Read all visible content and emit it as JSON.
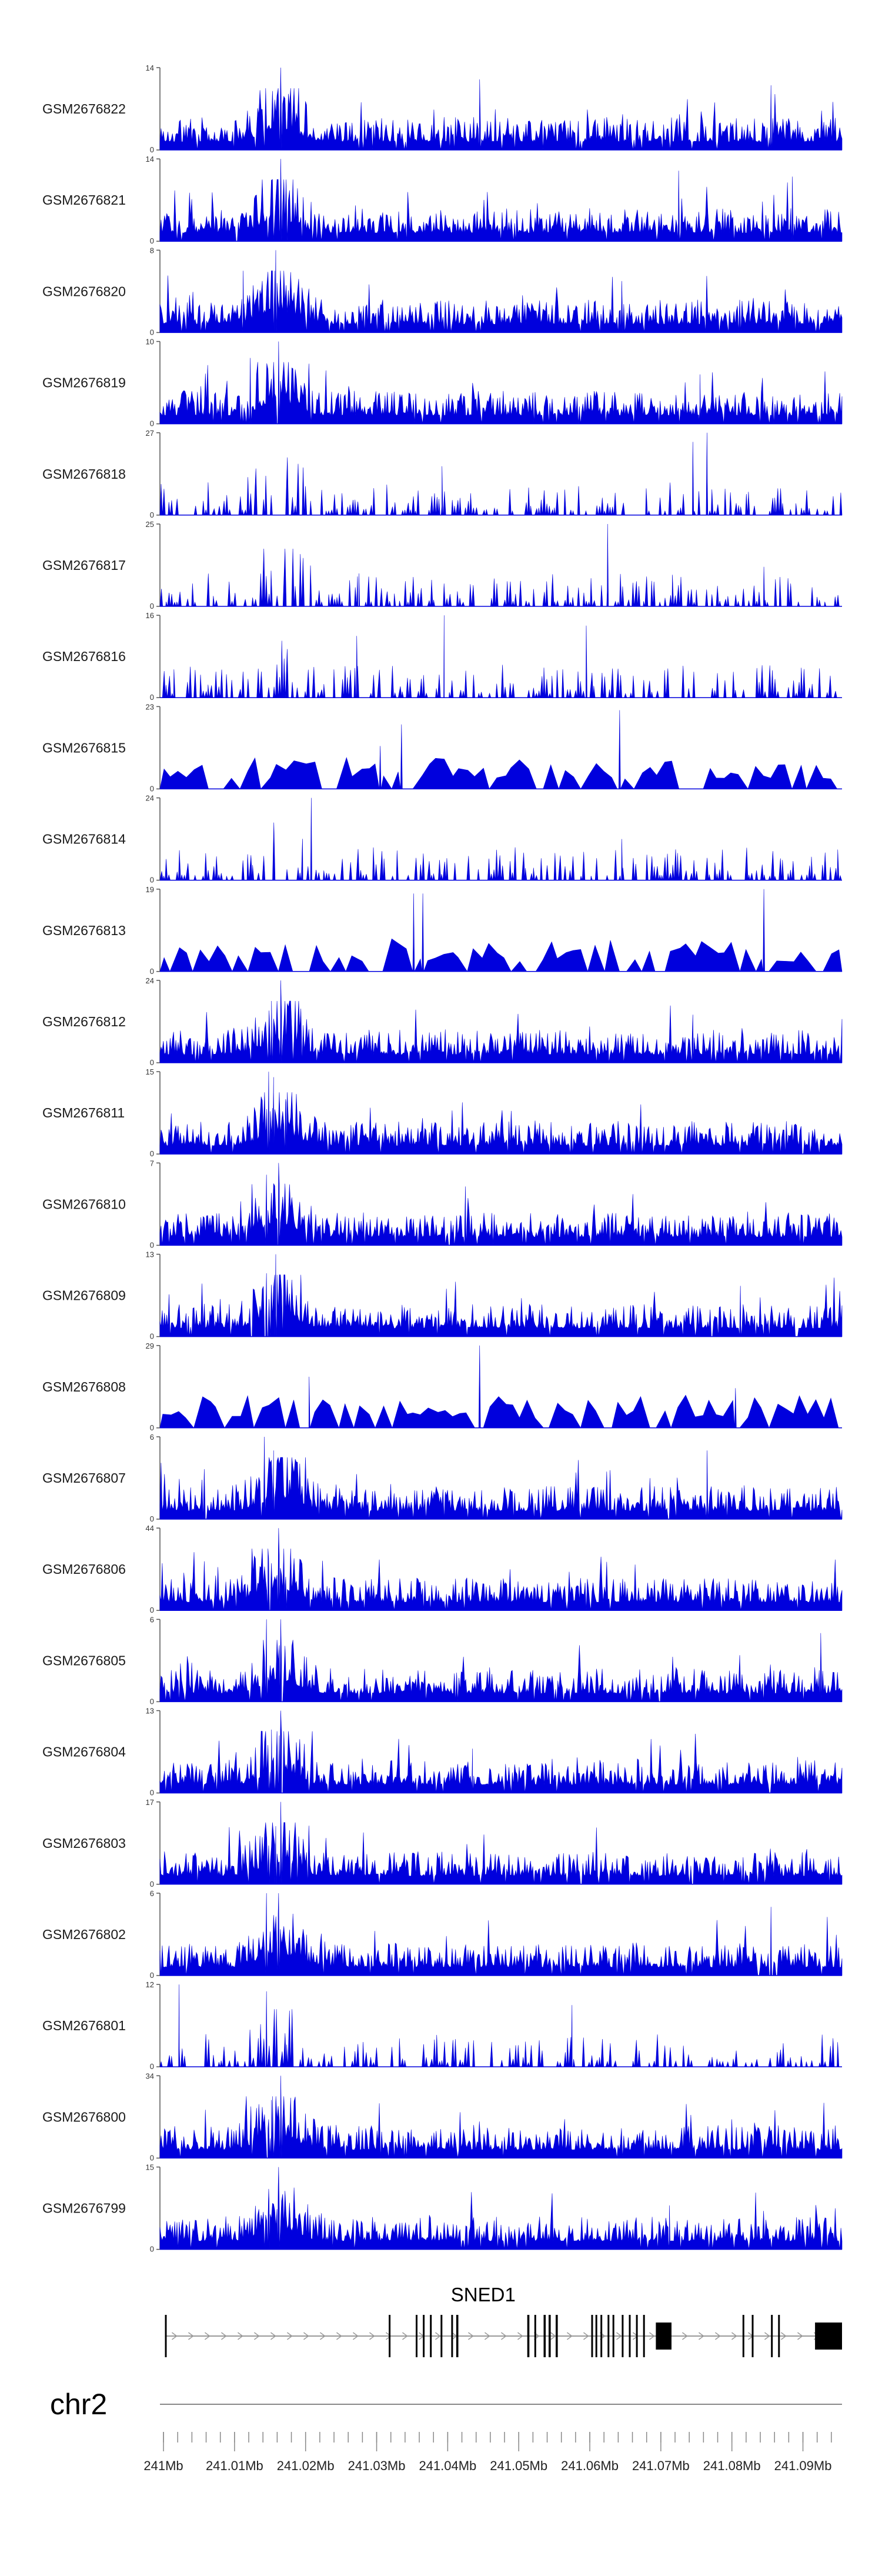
{
  "chart_data": {
    "type": "area",
    "title": "",
    "chromosome": "chr2",
    "x_unit": "Mb",
    "xlim": [
      240.9995,
      241.0955
    ],
    "x_ticks": [
      241.0,
      241.01,
      241.02,
      241.03,
      241.04,
      241.05,
      241.06,
      241.07,
      241.08,
      241.09
    ],
    "x_tick_labels": [
      "241Mb",
      "241.01Mb",
      "241.02Mb",
      "241.03Mb",
      "241.04Mb",
      "241.05Mb",
      "241.06Mb",
      "241.07Mb",
      "241.08Mb",
      "241.09Mb"
    ],
    "series": [
      {
        "name": "GSM2676822",
        "ymax": 14,
        "y_tick_labels": [
          "14",
          "0"
        ],
        "style": "dense",
        "peaks": [
          [
            241.0165,
            14
          ],
          [
            241.0445,
            12
          ],
          [
            241.0855,
            11
          ]
        ]
      },
      {
        "name": "GSM2676821",
        "ymax": 14,
        "y_tick_labels": [
          "14",
          "0"
        ],
        "style": "dense",
        "peaks": [
          [
            241.0165,
            14
          ],
          [
            241.0725,
            12
          ],
          [
            241.0885,
            11
          ]
        ]
      },
      {
        "name": "GSM2676820",
        "ymax": 8,
        "y_tick_labels": [
          "8",
          "0"
        ],
        "style": "dense",
        "peaks": [
          [
            241.0158,
            8
          ],
          [
            241.0112,
            6
          ],
          [
            241.0645,
            5
          ]
        ]
      },
      {
        "name": "GSM2676819",
        "ymax": 10,
        "y_tick_labels": [
          "10",
          "0"
        ],
        "style": "dense",
        "peaks": [
          [
            241.0162,
            10
          ],
          [
            241.0122,
            8
          ],
          [
            241.0755,
            6
          ]
        ]
      },
      {
        "name": "GSM2676818",
        "ymax": 27,
        "y_tick_labels": [
          "27",
          "0"
        ],
        "style": "sparse",
        "peaks": [
          [
            241.0765,
            27
          ],
          [
            241.0745,
            24
          ],
          [
            241.0392,
            16
          ]
        ]
      },
      {
        "name": "GSM2676817",
        "ymax": 25,
        "y_tick_labels": [
          "25",
          "0"
        ],
        "style": "sparse",
        "peaks": [
          [
            241.0625,
            25
          ],
          [
            241.0845,
            12
          ],
          [
            241.0275,
            10
          ]
        ]
      },
      {
        "name": "GSM2676816",
        "ymax": 16,
        "y_tick_labels": [
          "16",
          "0"
        ],
        "style": "sparse",
        "peaks": [
          [
            241.0395,
            16
          ],
          [
            241.0595,
            14
          ],
          [
            241.0272,
            12
          ]
        ]
      },
      {
        "name": "GSM2676815",
        "ymax": 23,
        "y_tick_labels": [
          "23",
          "0"
        ],
        "style": "spiky",
        "peaks": [
          [
            241.0642,
            22
          ],
          [
            241.0335,
            18
          ],
          [
            241.0305,
            12
          ]
        ]
      },
      {
        "name": "GSM2676814",
        "ymax": 24,
        "y_tick_labels": [
          "24",
          "0"
        ],
        "style": "sparse",
        "peaks": [
          [
            241.0208,
            24
          ],
          [
            241.0645,
            12
          ],
          [
            241.0195,
            8
          ]
        ]
      },
      {
        "name": "GSM2676813",
        "ymax": 19,
        "y_tick_labels": [
          "19",
          "0"
        ],
        "style": "spiky",
        "peaks": [
          [
            241.0845,
            19
          ],
          [
            241.0352,
            18
          ],
          [
            241.0365,
            18
          ]
        ]
      },
      {
        "name": "GSM2676812",
        "ymax": 24,
        "y_tick_labels": [
          "24",
          "0"
        ],
        "style": "dense",
        "peaks": [
          [
            241.0165,
            24
          ],
          [
            241.0152,
            18
          ],
          [
            241.0745,
            14
          ]
        ]
      },
      {
        "name": "GSM2676811",
        "ymax": 15,
        "y_tick_labels": [
          "15",
          "0"
        ],
        "style": "dense",
        "peaks": [
          [
            241.0148,
            15
          ],
          [
            241.0155,
            14
          ],
          [
            241.0172,
            10
          ]
        ]
      },
      {
        "name": "GSM2676810",
        "ymax": 7,
        "y_tick_labels": [
          "7",
          "0"
        ],
        "style": "dense",
        "peaks": [
          [
            241.0162,
            7
          ],
          [
            241.0145,
            6
          ],
          [
            241.0425,
            5
          ]
        ]
      },
      {
        "name": "GSM2676809",
        "ymax": 13,
        "y_tick_labels": [
          "13",
          "0"
        ],
        "style": "dense",
        "peaks": [
          [
            241.0158,
            13
          ],
          [
            241.0145,
            10
          ],
          [
            241.0812,
            8
          ]
        ]
      },
      {
        "name": "GSM2676808",
        "ymax": 29,
        "y_tick_labels": [
          "29",
          "0"
        ],
        "style": "spiky",
        "peaks": [
          [
            241.0445,
            29
          ],
          [
            241.0205,
            18
          ],
          [
            241.0805,
            14
          ]
        ]
      },
      {
        "name": "GSM2676807",
        "ymax": 6,
        "y_tick_labels": [
          "6",
          "0"
        ],
        "style": "dense",
        "peaks": [
          [
            241.0142,
            6
          ],
          [
            241.0155,
            5
          ],
          [
            241.0765,
            5
          ]
        ]
      },
      {
        "name": "GSM2676806",
        "ymax": 44,
        "y_tick_labels": [
          "44",
          "0"
        ],
        "style": "dense",
        "peaks": [
          [
            241.0162,
            44
          ],
          [
            241.0148,
            28
          ],
          [
            241.0172,
            18
          ]
        ]
      },
      {
        "name": "GSM2676805",
        "ymax": 6,
        "y_tick_labels": [
          "6",
          "0"
        ],
        "style": "dense",
        "peaks": [
          [
            241.0145,
            6
          ],
          [
            241.0165,
            6
          ],
          [
            241.0925,
            5
          ]
        ]
      },
      {
        "name": "GSM2676804",
        "ymax": 13,
        "y_tick_labels": [
          "13",
          "0"
        ],
        "style": "dense",
        "peaks": [
          [
            241.0165,
            13
          ],
          [
            241.0152,
            10
          ],
          [
            241.0435,
            7
          ]
        ]
      },
      {
        "name": "GSM2676803",
        "ymax": 17,
        "y_tick_labels": [
          "17",
          "0"
        ],
        "style": "dense",
        "peaks": [
          [
            241.0165,
            17
          ],
          [
            241.0158,
            12
          ],
          [
            241.0148,
            8
          ]
        ]
      },
      {
        "name": "GSM2676802",
        "ymax": 6,
        "y_tick_labels": [
          "6",
          "0"
        ],
        "style": "dense",
        "peaks": [
          [
            241.0145,
            6
          ],
          [
            241.0162,
            6
          ],
          [
            241.0855,
            5
          ]
        ]
      },
      {
        "name": "GSM2676801",
        "ymax": 12,
        "y_tick_labels": [
          "12",
          "0"
        ],
        "style": "sparse",
        "peaks": [
          [
            241.0022,
            12
          ],
          [
            241.0145,
            11
          ],
          [
            241.0575,
            9
          ]
        ]
      },
      {
        "name": "GSM2676800",
        "ymax": 34,
        "y_tick_labels": [
          "34",
          "0"
        ],
        "style": "dense",
        "peaks": [
          [
            241.0165,
            34
          ],
          [
            241.0152,
            24
          ],
          [
            241.0148,
            16
          ]
        ]
      },
      {
        "name": "GSM2676799",
        "ymax": 15,
        "y_tick_labels": [
          "15",
          "0"
        ],
        "style": "dense",
        "peaks": [
          [
            241.0162,
            15
          ],
          [
            241.0148,
            11
          ],
          [
            241.0712,
            8
          ]
        ]
      }
    ],
    "gene": {
      "name": "SNED1",
      "start": 241.0002,
      "end": 241.0955,
      "exons": [
        [
          241.0002,
          241.0004
        ],
        [
          241.0317,
          241.0319
        ],
        [
          241.0355,
          241.0357
        ],
        [
          241.0365,
          241.0367
        ],
        [
          241.0375,
          241.0377
        ],
        [
          241.039,
          241.0392
        ],
        [
          241.0405,
          241.0407
        ],
        [
          241.0412,
          241.0415
        ],
        [
          241.0512,
          241.0515
        ],
        [
          241.0522,
          241.0524
        ],
        [
          241.0535,
          241.0538
        ],
        [
          241.0542,
          241.0545
        ],
        [
          241.0552,
          241.0555
        ],
        [
          241.0602,
          241.0604
        ],
        [
          241.0608,
          241.061
        ],
        [
          241.0615,
          241.0617
        ],
        [
          241.0625,
          241.0627
        ],
        [
          241.0632,
          241.0634
        ],
        [
          241.0645,
          241.0647
        ],
        [
          241.0655,
          241.0657
        ],
        [
          241.0665,
          241.0667
        ],
        [
          241.0675,
          241.0677
        ],
        [
          241.0693,
          241.0715
        ],
        [
          241.0815,
          241.0817
        ],
        [
          241.0828,
          241.083
        ],
        [
          241.0855,
          241.0857
        ],
        [
          241.0865,
          241.0867
        ],
        [
          241.0917,
          241.0955
        ]
      ]
    },
    "colors": {
      "signal": "#0000dd",
      "gene": "#000000",
      "intron_arrow": "#999999",
      "axis": "#888888"
    }
  }
}
